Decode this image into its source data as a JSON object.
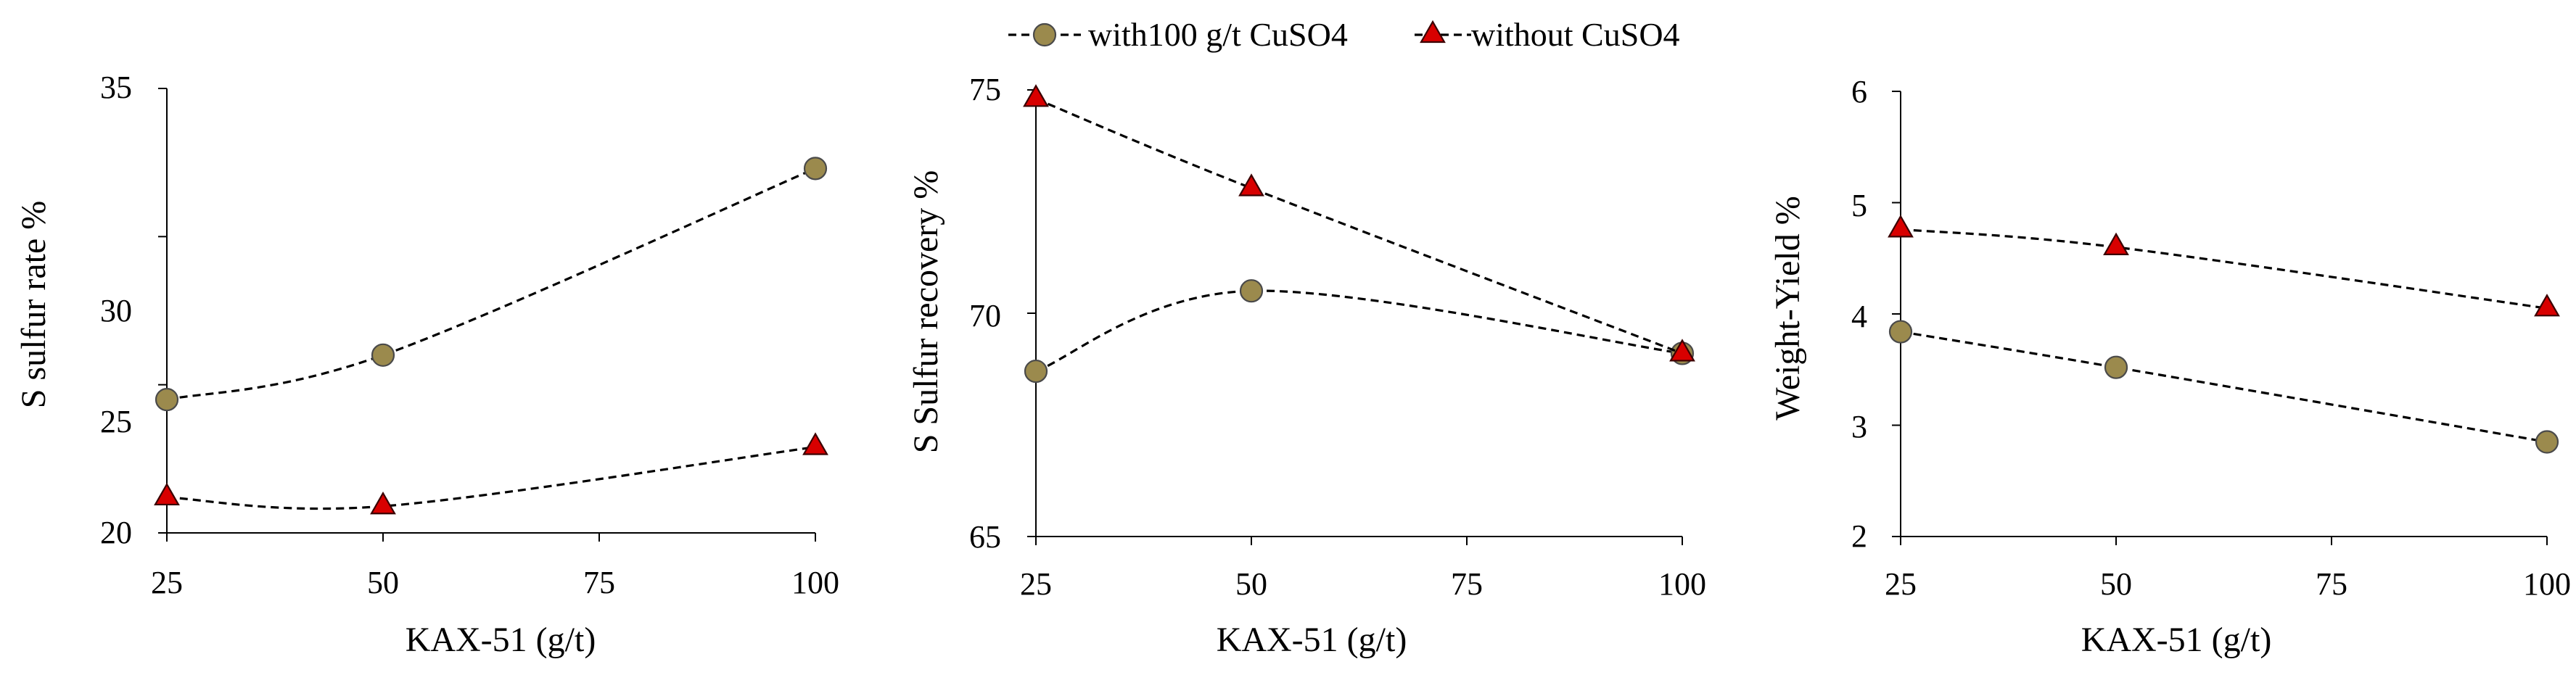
{
  "legend": [
    {
      "label": "with100 g/t CuSO4",
      "marker": "circle",
      "color": "#9B8A4D"
    },
    {
      "label": "without CuSO4",
      "marker": "triangle",
      "color": "#D80000"
    }
  ],
  "chart_data": [
    {
      "type": "line",
      "title": "",
      "xlabel": "KAX-51 (g/t)",
      "ylabel": "S sulfur rate  %",
      "x": [
        25,
        50,
        100
      ],
      "xlim": [
        25,
        100
      ],
      "xticks": [
        25,
        50,
        75,
        100
      ],
      "ylim": [
        20,
        35
      ],
      "yticks": [
        20,
        25,
        30,
        35
      ],
      "series": [
        {
          "name": "with100 g/t CuSO4",
          "values": [
            24.5,
            26.0,
            32.3
          ]
        },
        {
          "name": "without CuSO4",
          "values": [
            21.2,
            20.9,
            22.9
          ]
        }
      ]
    },
    {
      "type": "line",
      "title": "",
      "xlabel": "KAX-51 (g/t)",
      "ylabel": "S Sulfur recovery  %",
      "x": [
        25,
        50,
        100
      ],
      "xlim": [
        25,
        100
      ],
      "xticks": [
        25,
        50,
        75,
        100
      ],
      "ylim": [
        65,
        75
      ],
      "yticks": [
        65,
        70,
        75
      ],
      "series": [
        {
          "name": "with100 g/t CuSO4",
          "values": [
            68.7,
            70.5,
            69.1
          ]
        },
        {
          "name": "without CuSO4",
          "values": [
            74.8,
            72.8,
            69.1
          ]
        }
      ]
    },
    {
      "type": "line",
      "title": "",
      "xlabel": "KAX-51 (g/t)",
      "ylabel": "Weight-Yield  %",
      "x": [
        25,
        50,
        100
      ],
      "xlim": [
        25,
        100
      ],
      "xticks": [
        25,
        50,
        75,
        100
      ],
      "ylim": [
        2,
        6
      ],
      "yticks": [
        2,
        3,
        4,
        5,
        6
      ],
      "series": [
        {
          "name": "with100 g/t CuSO4",
          "values": [
            3.84,
            3.52,
            2.85
          ]
        },
        {
          "name": "without CuSO4",
          "values": [
            4.76,
            4.6,
            4.05
          ]
        }
      ]
    }
  ]
}
